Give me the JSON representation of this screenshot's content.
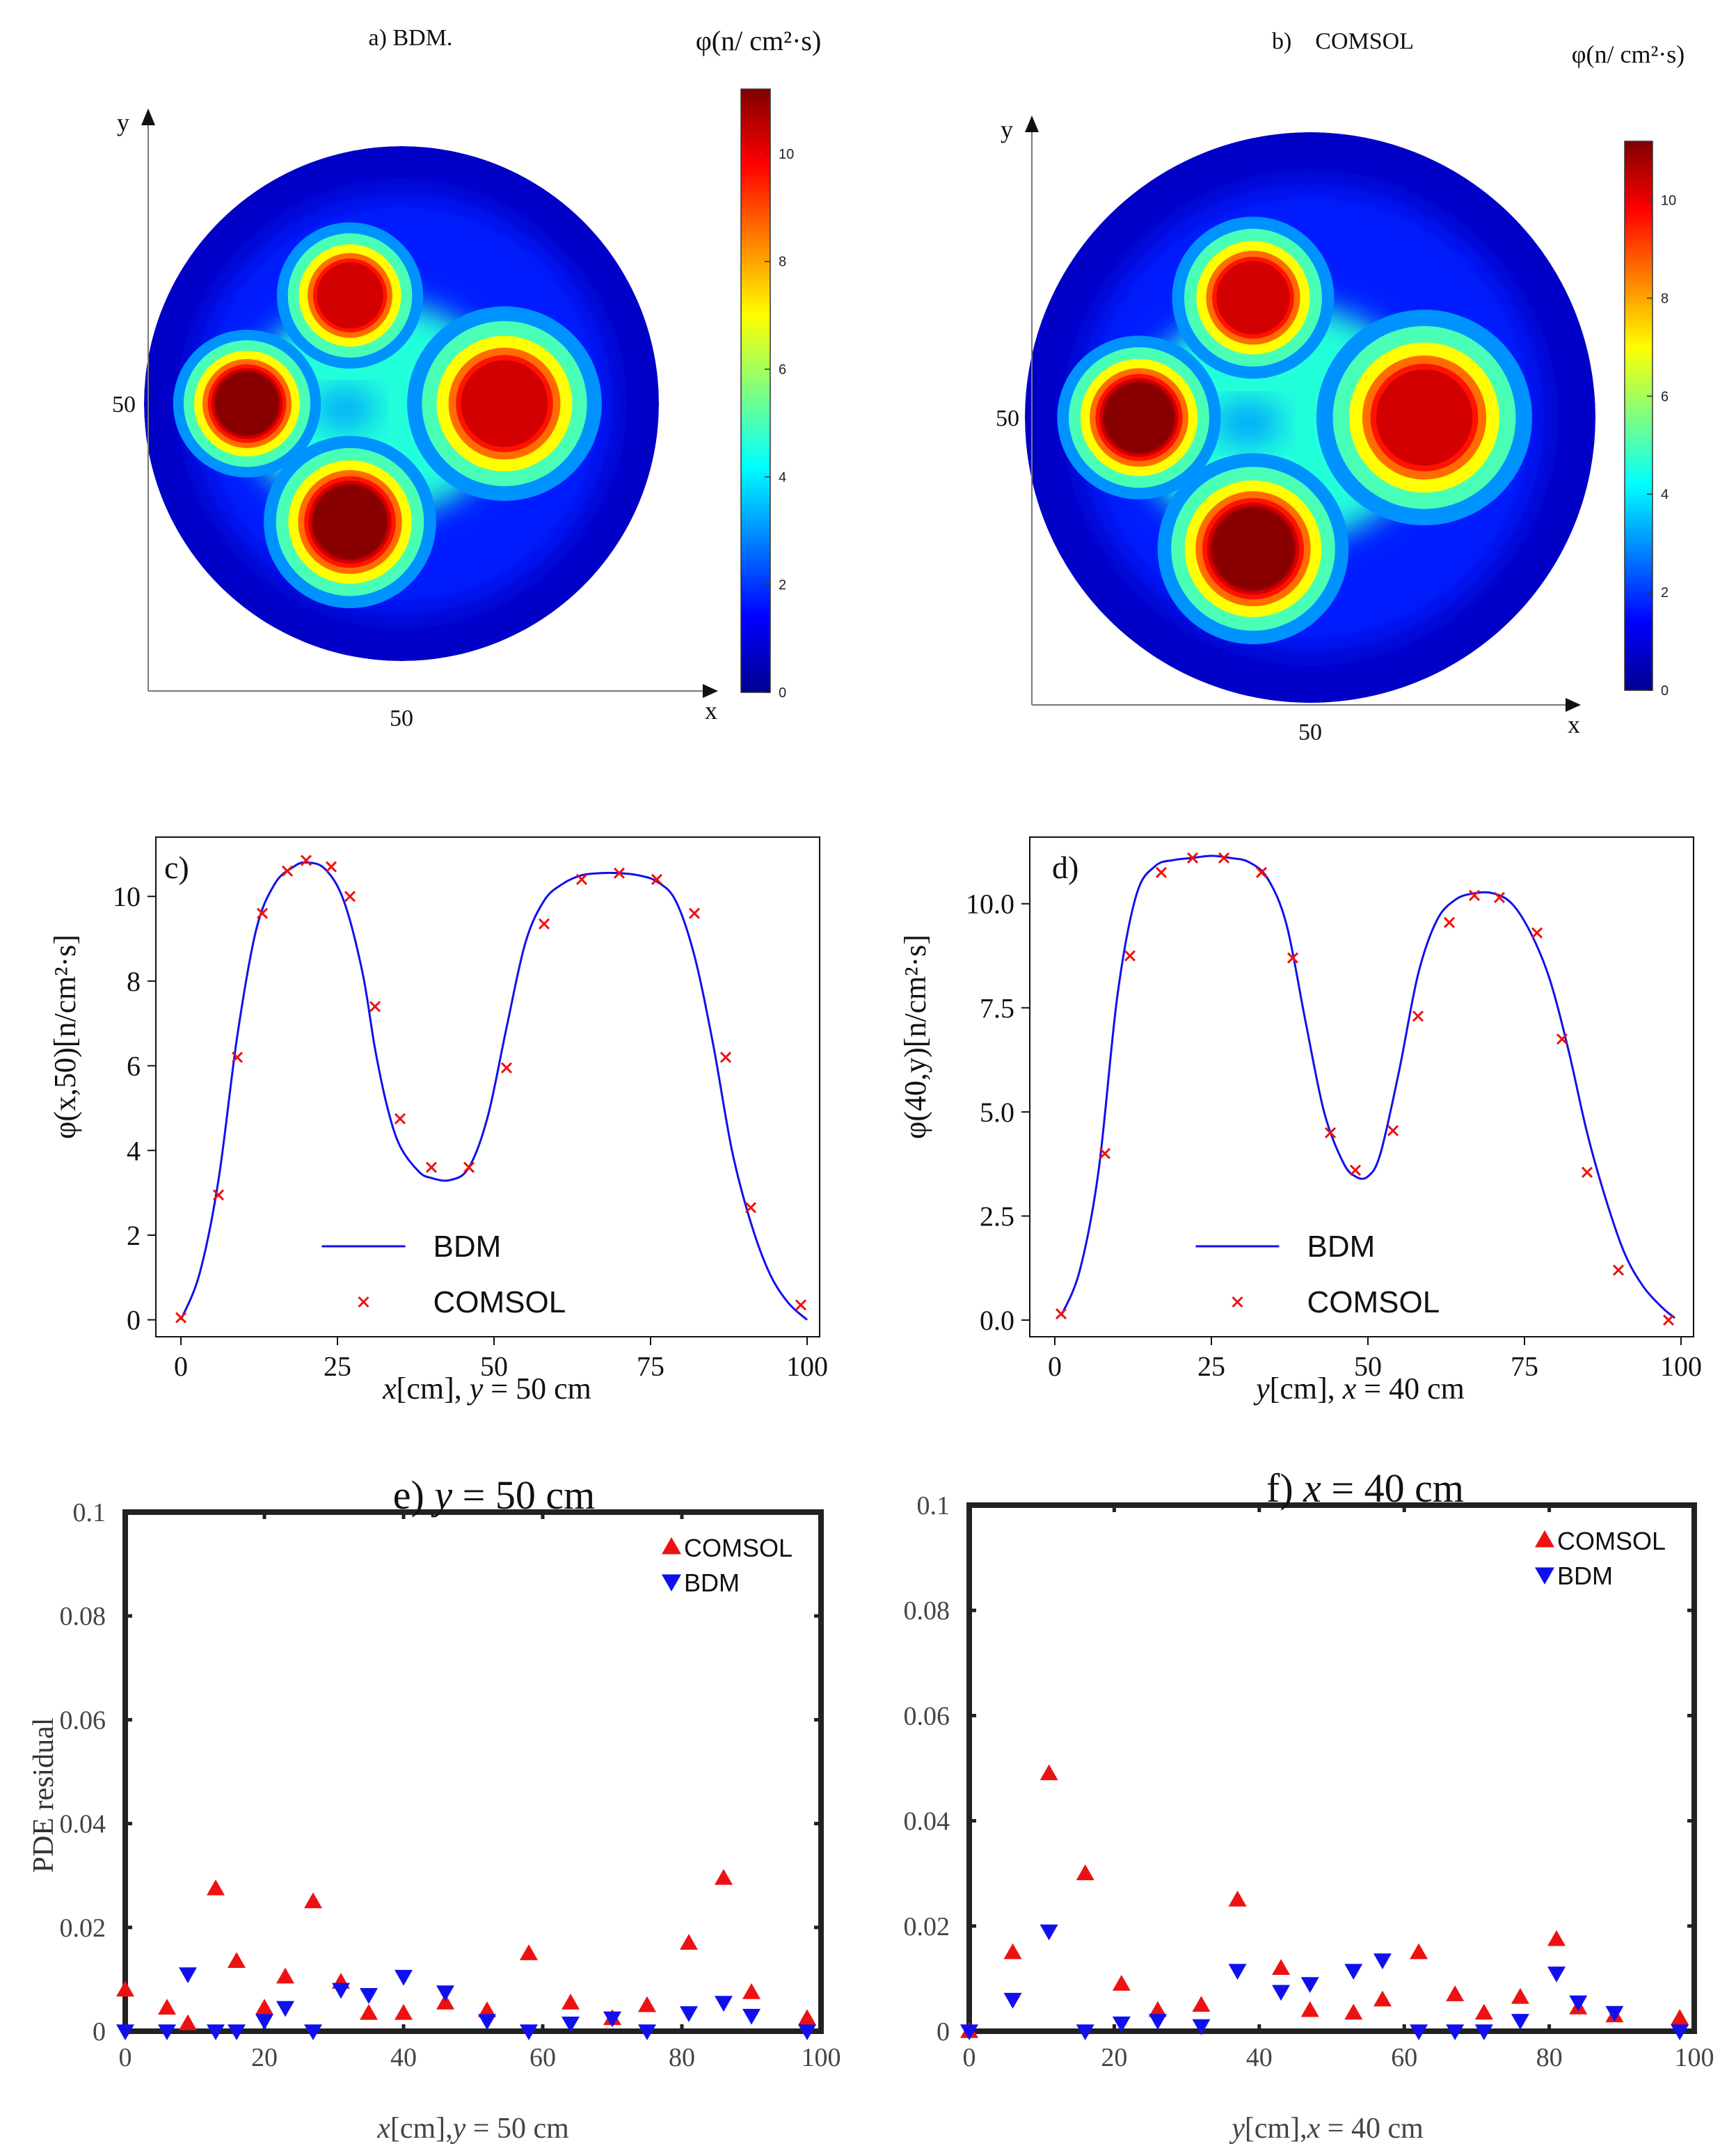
{
  "chart_data": [
    {
      "id": "a",
      "type": "heatmap",
      "title": "a) BDM.",
      "colorbar_label": "φ(n/ cm²·s)",
      "colorbar_ticks": [
        0,
        2,
        4,
        6,
        8,
        10
      ],
      "colorbar_range": [
        0,
        11.2
      ],
      "xlabel": "x",
      "ylabel": "y",
      "x_tick_label": "50",
      "y_tick_label": "50",
      "domain": {
        "center": [
          50,
          50
        ],
        "radius": 50
      },
      "sources": [
        {
          "x": 20,
          "y": 50,
          "radius": 12,
          "peak": 11.2
        },
        {
          "x": 40,
          "y": 71,
          "radius": 12,
          "peak": 10.7
        },
        {
          "x": 40,
          "y": 27,
          "radius": 14,
          "peak": 11.2
        },
        {
          "x": 70,
          "y": 50,
          "radius": 16,
          "peak": 10.6
        }
      ]
    },
    {
      "id": "b",
      "type": "heatmap",
      "title": "b)    COMSOL",
      "colorbar_label": "φ(n/ cm²·s)",
      "colorbar_ticks": [
        0,
        2,
        4,
        6,
        8,
        10
      ],
      "colorbar_range": [
        0,
        11.2
      ],
      "xlabel": "x",
      "ylabel": "y",
      "x_tick_label": "50",
      "y_tick_label": "50",
      "domain": {
        "center": [
          50,
          50
        ],
        "radius": 50
      },
      "sources": [
        {
          "x": 20,
          "y": 50,
          "radius": 12,
          "peak": 11.2
        },
        {
          "x": 40,
          "y": 71,
          "radius": 12,
          "peak": 10.7
        },
        {
          "x": 40,
          "y": 27,
          "radius": 14,
          "peak": 11.2
        },
        {
          "x": 70,
          "y": 50,
          "radius": 16,
          "peak": 10.6
        }
      ]
    },
    {
      "id": "c",
      "type": "line",
      "panel_label": "c)",
      "xlabel_parts": [
        "x",
        "[cm], ",
        "y",
        " = 50 cm"
      ],
      "ylabel": "φ(x,50)[n/cm²·s]",
      "xlim": [
        -4,
        102
      ],
      "ylim": [
        -0.4,
        11.4
      ],
      "xticks": [
        0,
        25,
        50,
        75,
        100
      ],
      "yticks": [
        0,
        2,
        4,
        6,
        8,
        10
      ],
      "legend": [
        "BDM",
        "COMSOL"
      ],
      "series": [
        {
          "name": "BDM",
          "style": "line",
          "color": "#1010ee",
          "x": [
            0,
            3,
            6,
            9,
            12,
            15,
            18,
            20,
            23,
            26,
            29,
            31,
            33,
            35,
            38,
            40,
            43,
            46,
            49,
            52,
            55,
            58,
            61,
            64,
            67,
            70,
            73,
            76,
            79,
            82,
            85,
            88,
            91,
            94,
            97,
            100
          ],
          "y": [
            0.0,
            1.1,
            3.3,
            6.7,
            9.2,
            10.3,
            10.7,
            10.8,
            10.65,
            9.9,
            8.2,
            6.4,
            5.0,
            4.1,
            3.5,
            3.35,
            3.3,
            3.6,
            4.8,
            6.9,
            8.9,
            9.9,
            10.3,
            10.5,
            10.55,
            10.55,
            10.5,
            10.35,
            9.9,
            8.6,
            6.5,
            4.0,
            2.3,
            1.1,
            0.4,
            0.0
          ]
        },
        {
          "name": "COMSOL",
          "style": "x-marker",
          "color": "#ee1111",
          "x": [
            0,
            6,
            9,
            13,
            17,
            20,
            24,
            27,
            31,
            35,
            40,
            46,
            52,
            58,
            64,
            70,
            76,
            82,
            87,
            91,
            99
          ],
          "y": [
            0.05,
            2.95,
            6.2,
            9.6,
            10.6,
            10.85,
            10.7,
            10.0,
            7.4,
            4.75,
            3.6,
            3.6,
            5.95,
            9.35,
            10.4,
            10.55,
            10.4,
            9.6,
            6.2,
            2.65,
            0.35
          ]
        }
      ]
    },
    {
      "id": "d",
      "type": "line",
      "panel_label": "d)",
      "xlabel_parts": [
        "y",
        "[cm], ",
        "x",
        " = 40 cm"
      ],
      "ylabel": "φ(40,y)[n/cm²·s]",
      "xlim": [
        -4,
        102
      ],
      "ylim": [
        -0.4,
        11.6
      ],
      "xticks": [
        0,
        25,
        50,
        75,
        100
      ],
      "yticks": [
        0.0,
        2.5,
        5.0,
        7.5,
        10.0
      ],
      "ytick_labels": [
        "0.0",
        "2.5",
        "5.0",
        "7.5",
        "10.0"
      ],
      "legend": [
        "BDM",
        "COMSOL"
      ],
      "series": [
        {
          "name": "BDM",
          "style": "line",
          "color": "#1010ee",
          "x": [
            1,
            4,
            7,
            10,
            13,
            16,
            19,
            22,
            25,
            28,
            31,
            34,
            37,
            40,
            43,
            46,
            48,
            50,
            52,
            55,
            58,
            61,
            64,
            67,
            70,
            73,
            76,
            79,
            82,
            85,
            88,
            91,
            94,
            97,
            99
          ],
          "y": [
            0.1,
            1.2,
            3.6,
            7.8,
            10.2,
            10.9,
            11.05,
            11.1,
            11.15,
            11.1,
            11.0,
            10.6,
            9.5,
            7.2,
            5.0,
            3.8,
            3.45,
            3.45,
            4.0,
            6.0,
            8.3,
            9.6,
            10.1,
            10.25,
            10.25,
            10.0,
            9.3,
            8.2,
            6.5,
            4.5,
            2.9,
            1.6,
            0.8,
            0.3,
            0.05
          ]
        },
        {
          "name": "COMSOL",
          "style": "x-marker",
          "color": "#ee1111",
          "x": [
            1,
            8,
            12,
            17,
            22,
            27,
            33,
            38,
            44,
            48,
            54,
            58,
            63,
            67,
            71,
            77,
            81,
            85,
            90,
            98
          ],
          "y": [
            0.15,
            4.0,
            8.75,
            10.75,
            11.1,
            11.1,
            10.75,
            8.7,
            4.5,
            3.6,
            4.55,
            7.3,
            9.55,
            10.2,
            10.15,
            9.3,
            6.75,
            3.55,
            1.2,
            0.0
          ]
        }
      ]
    },
    {
      "id": "e",
      "type": "scatter",
      "title_parts": [
        "e) ",
        "y",
        " = 50 cm"
      ],
      "xlabel_parts": [
        "x",
        "[cm],",
        "y",
        " = 50 cm"
      ],
      "ylabel": "PDE residual",
      "xlim": [
        0,
        100
      ],
      "ylim": [
        0,
        0.1
      ],
      "xticks": [
        0,
        20,
        40,
        60,
        80,
        100
      ],
      "yticks": [
        0,
        0.02,
        0.04,
        0.06,
        0.08,
        0.1
      ],
      "ytick_labels": [
        "0",
        "0.02",
        "0.04",
        "0.06",
        "0.08",
        "0.1"
      ],
      "legend": [
        "COMSOL",
        "BDM"
      ],
      "series": [
        {
          "name": "COMSOL",
          "marker": "triangle-up",
          "color": "#ee1111",
          "x": [
            0,
            6,
            9,
            13,
            16,
            20,
            23,
            27,
            31,
            35,
            40,
            46,
            52,
            58,
            64,
            70,
            75,
            81,
            86,
            90,
            98
          ],
          "y": [
            0.008,
            0.0045,
            0.0015,
            0.0275,
            0.0135,
            0.0045,
            0.0105,
            0.025,
            0.0095,
            0.0035,
            0.0035,
            0.0055,
            0.004,
            0.015,
            0.0055,
            0.0025,
            0.005,
            0.017,
            0.0295,
            0.0075,
            0.0025
          ]
        },
        {
          "name": "BDM",
          "marker": "triangle-down",
          "color": "#1010ee",
          "x": [
            0,
            6,
            9,
            13,
            16,
            20,
            23,
            27,
            31,
            35,
            40,
            46,
            52,
            58,
            64,
            70,
            75,
            81,
            86,
            90,
            98
          ],
          "y": [
            0.0,
            0.0,
            0.011,
            0.0,
            0.0,
            0.002,
            0.0045,
            0.0,
            0.008,
            0.007,
            0.0105,
            0.0075,
            0.002,
            0.0,
            0.0015,
            0.0025,
            0.0,
            0.0035,
            0.0055,
            0.003,
            0.0
          ]
        }
      ]
    },
    {
      "id": "f",
      "type": "scatter",
      "title_parts": [
        "f) ",
        "x",
        " = 40 cm"
      ],
      "xlabel_parts": [
        "y",
        "[cm],",
        "x",
        " = 40 cm"
      ],
      "ylabel": "",
      "xlim": [
        0,
        100
      ],
      "ylim": [
        0,
        0.1
      ],
      "xticks": [
        0,
        20,
        40,
        60,
        80,
        100
      ],
      "yticks": [
        0,
        0.02,
        0.04,
        0.06,
        0.08,
        0.1
      ],
      "ytick_labels": [
        "0",
        "0.02",
        "0.04",
        "0.06",
        "0.08",
        "0.1"
      ],
      "legend": [
        "COMSOL",
        "BDM"
      ],
      "series": [
        {
          "name": "COMSOL",
          "marker": "triangle-up",
          "color": "#ee1111",
          "x": [
            0,
            6,
            11,
            16,
            21,
            26,
            32,
            37,
            43,
            47,
            53,
            57,
            62,
            67,
            71,
            76,
            81,
            84,
            89,
            98
          ],
          "y": [
            0.0,
            0.015,
            0.049,
            0.03,
            0.009,
            0.004,
            0.005,
            0.025,
            0.012,
            0.004,
            0.0035,
            0.006,
            0.015,
            0.007,
            0.0035,
            0.0065,
            0.0175,
            0.0045,
            0.003,
            0.0025
          ]
        },
        {
          "name": "BDM",
          "marker": "triangle-down",
          "color": "#1010ee",
          "x": [
            0,
            6,
            11,
            16,
            21,
            26,
            32,
            37,
            43,
            47,
            53,
            57,
            62,
            67,
            71,
            76,
            81,
            84,
            89,
            98
          ],
          "y": [
            0.0,
            0.006,
            0.019,
            0.0,
            0.0015,
            0.002,
            0.001,
            0.0115,
            0.0075,
            0.009,
            0.0115,
            0.0135,
            0.0,
            0.0,
            0.0,
            0.002,
            0.011,
            0.0055,
            0.0035,
            0.0
          ]
        }
      ]
    }
  ]
}
